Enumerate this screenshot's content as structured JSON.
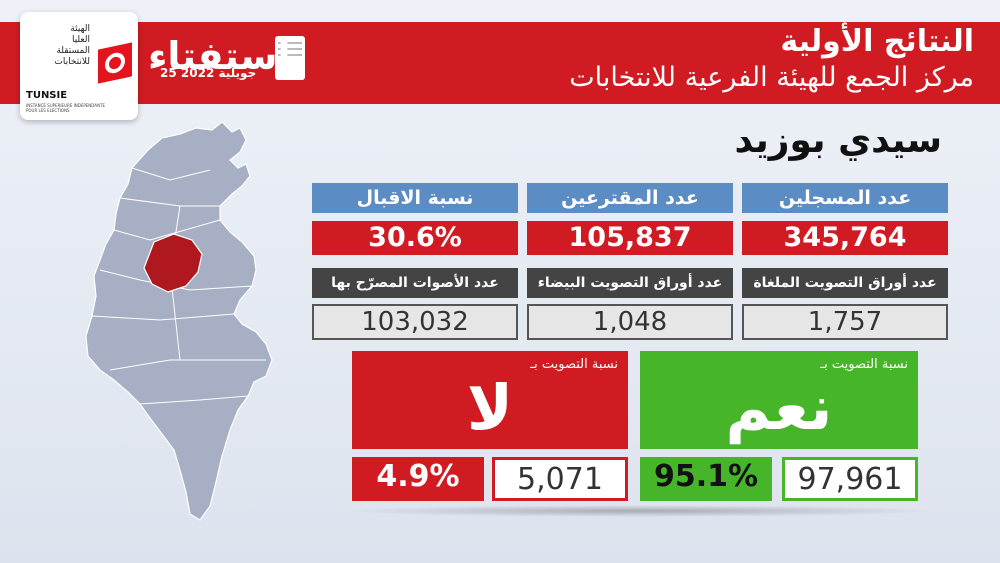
{
  "logo": {
    "ar_lines": [
      "الهيئة",
      "العليا",
      "المستقلة",
      "للانتخابات"
    ],
    "en": "TUNSIE",
    "en_small": "INSTANCE SUPERIEURE INDEPENDANTE POUR LES ELECTIONS"
  },
  "referendum": {
    "title": "استفتاء",
    "date": "25 جويلية 2022"
  },
  "header": {
    "line1": "النتائج الأولية",
    "line2": "مركز الجمع للهيئة الفرعية للانتخابات"
  },
  "region": "سيدي بوزيد",
  "stats": {
    "registered": {
      "label": "عدد المسجلين",
      "value": "345,764"
    },
    "voters": {
      "label": "عدد المقترعين",
      "value": "105,837"
    },
    "turnout": {
      "label": "نسبة الاقبال",
      "value": "30.6%"
    },
    "cancelled": {
      "label": "عدد أوراق التصويت الملغاة",
      "value": "1,757"
    },
    "blank": {
      "label": "عدد أوراق التصويت البيضاء",
      "value": "1,048"
    },
    "valid": {
      "label": "عدد الأصوات المصرّح بها",
      "value": "103,032"
    }
  },
  "no": {
    "label": "نسبة التصويت بـ",
    "word": "لا",
    "pct": "4.9%",
    "count": "5,071",
    "color": "#d01b22"
  },
  "yes": {
    "label": "نسبة التصويت بـ",
    "word": "نعم",
    "pct": "95.1%",
    "count": "97,961",
    "color": "#47b52a"
  },
  "map": {
    "highlight": "سيدي بوزيد",
    "base_color": "#a6afc4",
    "highlight_color": "#b01820"
  }
}
